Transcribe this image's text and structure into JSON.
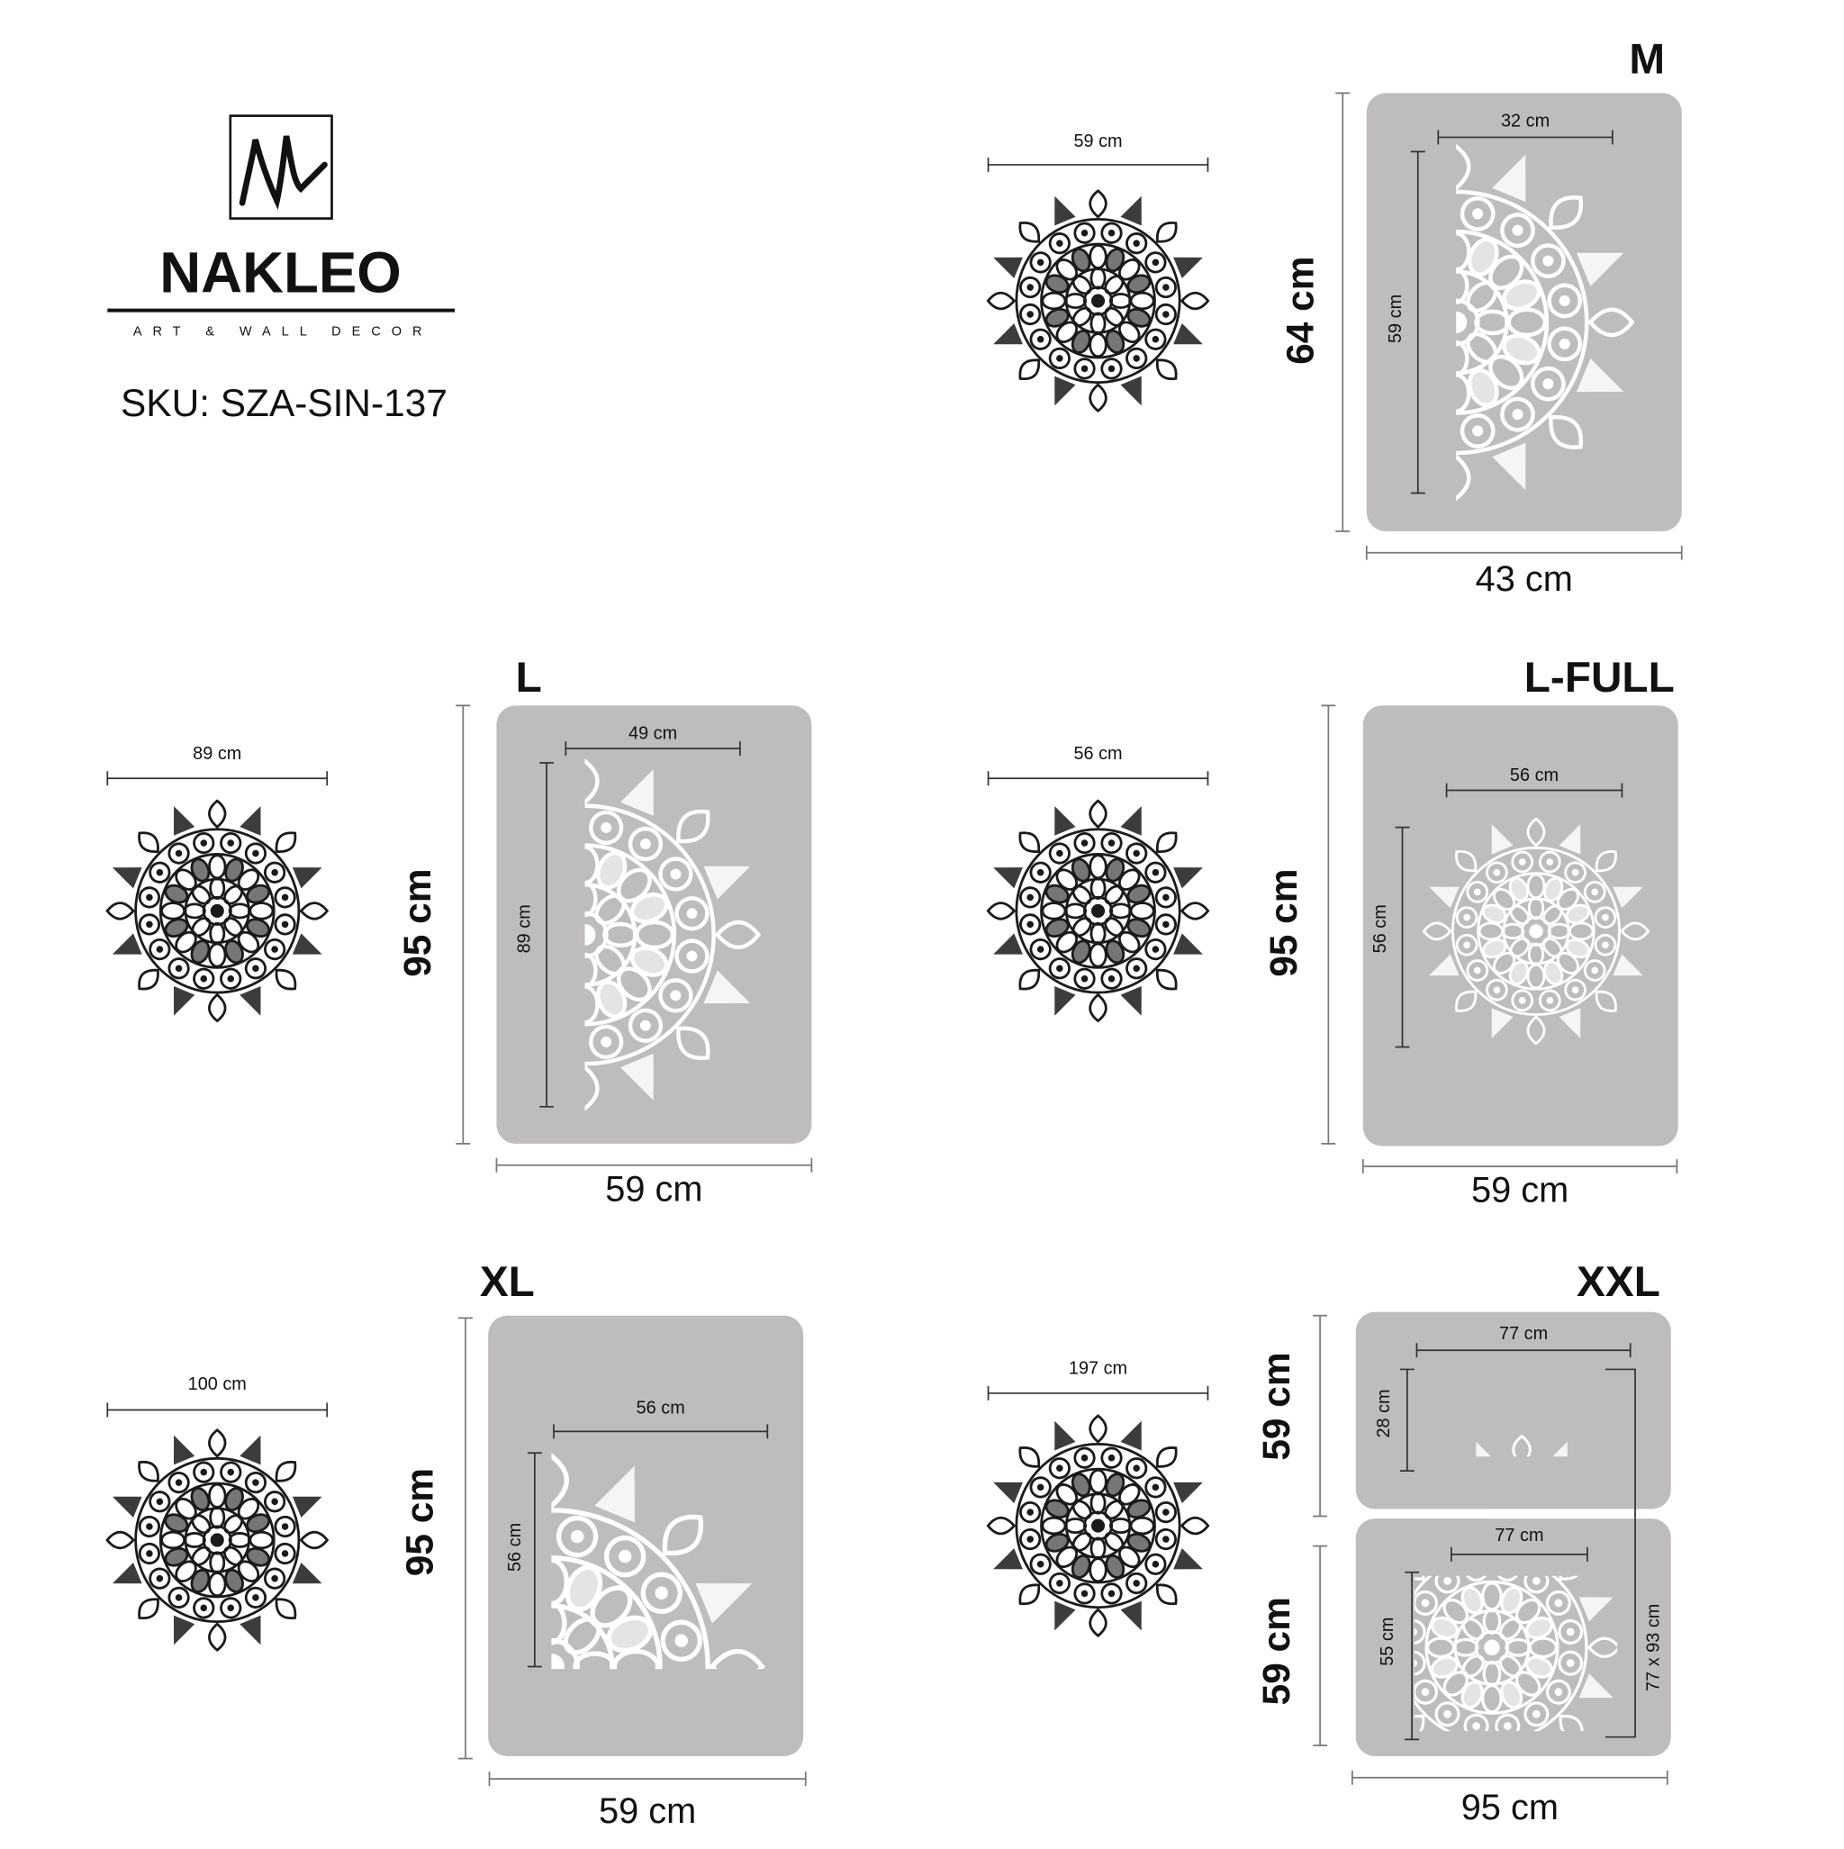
{
  "brand": {
    "name": "NAKLEO",
    "tagline": "ART & WALL DECOR",
    "sku": "SKU: SZA-SIN-137"
  },
  "sizes": [
    {
      "label": "M",
      "preview_width": "59 cm",
      "width": "43 cm",
      "panels": [
        {
          "height": "64 cm",
          "design_width": "32 cm",
          "design_height": "59 cm"
        }
      ]
    },
    {
      "label": "L",
      "preview_width": "89 cm",
      "width": "59 cm",
      "panels": [
        {
          "height": "95 cm",
          "design_width": "49 cm",
          "design_height": "89 cm"
        }
      ]
    },
    {
      "label": "L-FULL",
      "preview_width": "56 cm",
      "width": "59 cm",
      "panels": [
        {
          "height": "95 cm",
          "design_width": "56 cm",
          "design_height": "56 cm"
        }
      ]
    },
    {
      "label": "XL",
      "preview_width": "100 cm",
      "width": "59 cm",
      "panels": [
        {
          "height": "95 cm",
          "design_width": "56 cm",
          "design_height": "56 cm"
        }
      ]
    },
    {
      "label": "XXL",
      "preview_width": "197 cm",
      "width": "95 cm",
      "design_total": "77 x 93 cm",
      "panels": [
        {
          "height": "59 cm",
          "design_width": "77 cm",
          "design_height": "28 cm"
        },
        {
          "height": "59 cm",
          "design_width": "77 cm",
          "design_height": "55 cm"
        }
      ]
    }
  ]
}
